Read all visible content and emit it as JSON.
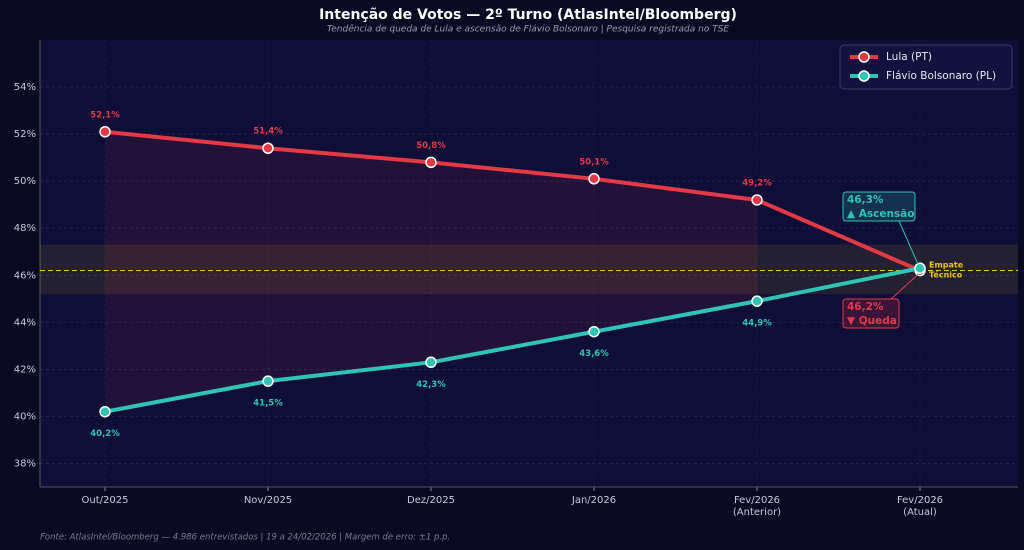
{
  "chart_data": {
    "type": "line",
    "title": "Intenção de Votos — 2º Turno (AtlasIntel/Bloomberg)",
    "subtitle": "Tendência de queda de Lula e ascensão de Flávio Bolsonaro | Pesquisa registrada no TSE",
    "footer": "Fonte: AtlasIntel/Bloomberg — 4.986 entrevistados | 19 a 24/02/2026 | Margem de erro: ±1 p.p.",
    "categories": [
      "Out/2025",
      "Nov/2025",
      "Dez/2025",
      "Jan/2026",
      "Fev/2026\n(Anterior)",
      "Fev/2026\n(Atual)"
    ],
    "series": [
      {
        "name": "Lula (PT)",
        "color": "#e63946",
        "values": [
          52.1,
          51.4,
          50.8,
          50.1,
          49.2,
          46.2
        ],
        "value_labels": [
          "52,1%",
          "51,4%",
          "50,8%",
          "50,1%",
          "49,2%",
          null
        ]
      },
      {
        "name": "Flávio Bolsonaro (PL)",
        "color": "#2ec4b6",
        "values": [
          40.2,
          41.5,
          42.3,
          43.6,
          44.9,
          46.3
        ],
        "value_labels": [
          "40,2%",
          "41,5%",
          "42,3%",
          "43,6%",
          "44,9%",
          null
        ]
      }
    ],
    "ylim": [
      37,
      56
    ],
    "yticks": [
      {
        "value": 38,
        "label": "38%"
      },
      {
        "value": 40,
        "label": "40%"
      },
      {
        "value": 42,
        "label": "42%"
      },
      {
        "value": 44,
        "label": "44%"
      },
      {
        "value": 46,
        "label": "46%"
      },
      {
        "value": 48,
        "label": "48%"
      },
      {
        "value": 50,
        "label": "50%"
      },
      {
        "value": 52,
        "label": "52%"
      },
      {
        "value": 54,
        "label": "54%"
      }
    ],
    "grid": true,
    "legend": "upper right",
    "tie_band": {
      "from": 45.2,
      "to": 47.3,
      "line": 46.2,
      "label": "Empate\nTécnico",
      "color": "#f0c419"
    },
    "annotations": [
      {
        "series": 1,
        "lines": [
          "46,3%",
          "▲ Ascensão"
        ]
      },
      {
        "series": 0,
        "lines": [
          "46,2%",
          "▼ Queda"
        ]
      }
    ]
  }
}
